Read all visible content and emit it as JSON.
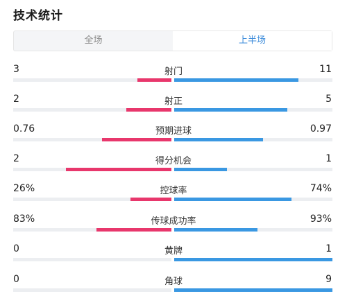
{
  "header": {
    "title": "技术统计"
  },
  "tabs": [
    {
      "label": "全场",
      "active": false
    },
    {
      "label": "上半场",
      "active": true
    }
  ],
  "colors": {
    "home": "#e8376c",
    "away": "#3a98e2",
    "track": "#eceef1",
    "active_tab": "#3b8bdb"
  },
  "stats": [
    {
      "label": "射门",
      "left": "3",
      "right": "11",
      "left_value": 3,
      "right_value": 11
    },
    {
      "label": "射正",
      "left": "2",
      "right": "5",
      "left_value": 2,
      "right_value": 5
    },
    {
      "label": "预期进球",
      "left": "0.76",
      "right": "0.97",
      "left_value": 0.76,
      "right_value": 0.97
    },
    {
      "label": "得分机会",
      "left": "2",
      "right": "1",
      "left_value": 2,
      "right_value": 1
    },
    {
      "label": "控球率",
      "left": "26%",
      "right": "74%",
      "left_value": 26,
      "right_value": 74
    },
    {
      "label": "传球成功率",
      "left": "83%",
      "right": "93%",
      "left_value": 83,
      "right_value": 93
    },
    {
      "label": "黄牌",
      "left": "0",
      "right": "1",
      "left_value": 0,
      "right_value": 1
    },
    {
      "label": "角球",
      "left": "0",
      "right": "9",
      "left_value": 0,
      "right_value": 9
    }
  ]
}
